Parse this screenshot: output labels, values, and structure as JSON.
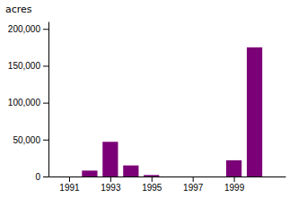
{
  "chart_data": {
    "type": "bar",
    "ylabel": "acres",
    "x": [
      1991,
      1992,
      1993,
      1994,
      1995,
      1996,
      1997,
      1998,
      1999,
      2000
    ],
    "values": [
      0,
      8000,
      47000,
      15000,
      2000,
      0,
      0,
      0,
      22000,
      175000
    ],
    "color": "#7b0077",
    "xlim": [
      1990,
      2001.5
    ],
    "xticks": [
      1991,
      1993,
      1995,
      1997,
      1999
    ],
    "ylim": [
      0,
      210000
    ],
    "yticks": [
      0,
      {
        "value": 50000,
        "label": "50,000"
      },
      {
        "value": 100000,
        "label": "100,000"
      },
      {
        "value": 150000,
        "label": "150,000"
      },
      {
        "value": 200000,
        "label": "200,000"
      }
    ],
    "grid": false
  }
}
